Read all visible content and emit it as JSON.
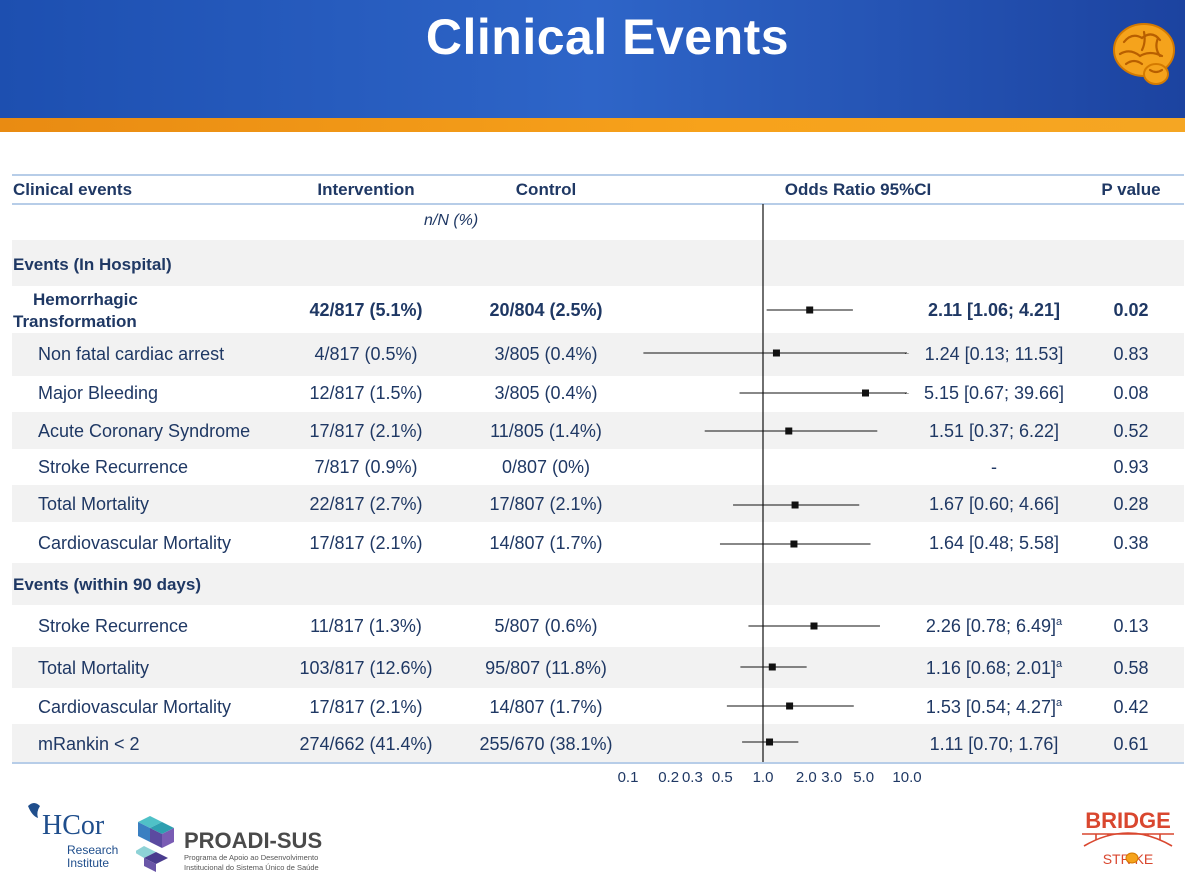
{
  "title": "Clinical Events",
  "columns": {
    "events": "Clinical events",
    "intervention": "Intervention",
    "control": "Control",
    "or": "Odds Ratio 95%CI",
    "p": "P value",
    "unit": "n/N (%)"
  },
  "sections": {
    "hospital": "Events (In Hospital)",
    "ninety": "Events (within 90 days)"
  },
  "rows": [
    {
      "label": "Hemorrhagic Transformation",
      "intervention": "42/817 (5.1%)",
      "control": "20/804 (2.5%)",
      "or_text": "2.11 [1.06; 4.21]",
      "sup": "",
      "p": "0.02",
      "bold": true
    },
    {
      "label": "Non fatal cardiac arrest",
      "intervention": "4/817 (0.5%)",
      "control": "3/805 (0.4%)",
      "or_text": "1.24 [0.13; 11.53]",
      "sup": "",
      "p": "0.83",
      "bold": false
    },
    {
      "label": "Major Bleeding",
      "intervention": "12/817 (1.5%)",
      "control": "3/805 (0.4%)",
      "or_text": "5.15 [0.67; 39.66]",
      "sup": "",
      "p": "0.08",
      "bold": false
    },
    {
      "label": "Acute Coronary Syndrome",
      "intervention": "17/817 (2.1%)",
      "control": "11/805 (1.4%)",
      "or_text": "1.51 [0.37; 6.22]",
      "sup": "",
      "p": "0.52",
      "bold": false
    },
    {
      "label": "Stroke Recurrence",
      "intervention": "7/817 (0.9%)",
      "control": "0/807 (0%)",
      "or_text": "-",
      "sup": "",
      "p": "0.93",
      "bold": false
    },
    {
      "label": "Total Mortality",
      "intervention": "22/817 (2.7%)",
      "control": "17/807 (2.1%)",
      "or_text": "1.67 [0.60; 4.66]",
      "sup": "",
      "p": "0.28",
      "bold": false
    },
    {
      "label": "Cardiovascular Mortality",
      "intervention": "17/817 (2.1%)",
      "control": "14/807 (1.7%)",
      "or_text": "1.64 [0.48; 5.58]",
      "sup": "",
      "p": "0.38",
      "bold": false
    },
    {
      "label": "Stroke Recurrence",
      "intervention": "11/817 (1.3%)",
      "control": "5/807 (0.6%)",
      "or_text": "2.26 [0.78; 6.49]",
      "sup": "a",
      "p": "0.13",
      "bold": false
    },
    {
      "label": "Total Mortality",
      "intervention": "103/817 (12.6%)",
      "control": "95/807 (11.8%)",
      "or_text": "1.16 [0.68; 2.01]",
      "sup": "a",
      "p": "0.58",
      "bold": false
    },
    {
      "label": "Cardiovascular Mortality",
      "intervention": "17/817 (2.1%)",
      "control": "14/807 (1.7%)",
      "or_text": "1.53 [0.54; 4.27]",
      "sup": "a",
      "p": "0.42",
      "bold": false
    },
    {
      "label": "mRankin < 2",
      "intervention": "274/662 (41.4%)",
      "control": "255/670 (38.1%)",
      "or_text": "1.11 [0.70; 1.76]",
      "sup": "",
      "p": "0.61",
      "bold": false
    }
  ],
  "chart_data": {
    "type": "forest",
    "x_scale": "log",
    "reference_line": 1.0,
    "xticks": [
      0.1,
      0.2,
      0.3,
      0.5,
      1.0,
      2.0,
      3.0,
      5.0,
      10.0
    ],
    "xtick_labels": [
      "0.1",
      "0.2",
      "0.3",
      "0.5",
      "1.0",
      "2.0",
      "3.0",
      "5.0",
      "10.0"
    ],
    "estimates": [
      {
        "or": 2.11,
        "lo": 1.06,
        "hi": 4.21
      },
      {
        "or": 1.24,
        "lo": 0.13,
        "hi": 11.53
      },
      {
        "or": 5.15,
        "lo": 0.67,
        "hi": 39.66
      },
      {
        "or": 1.51,
        "lo": 0.37,
        "hi": 6.22
      },
      null,
      {
        "or": 1.67,
        "lo": 0.6,
        "hi": 4.66
      },
      {
        "or": 1.64,
        "lo": 0.48,
        "hi": 5.58
      },
      {
        "or": 2.26,
        "lo": 0.78,
        "hi": 6.49
      },
      {
        "or": 1.16,
        "lo": 0.68,
        "hi": 2.01
      },
      {
        "or": 1.53,
        "lo": 0.54,
        "hi": 4.27
      },
      {
        "or": 1.11,
        "lo": 0.7,
        "hi": 1.76
      }
    ]
  },
  "logos": {
    "hcor": "HCor",
    "hcor_sub1": "Research",
    "hcor_sub2": "Institute",
    "proadi": "PROADI-SUS",
    "proadi_sub1": "Programa de Apoio ao Desenvolvimento",
    "proadi_sub2": "Institucional do Sistema Único de Saúde",
    "bridge": "BRIDGE",
    "stroke": "STR  KE"
  },
  "colors": {
    "header_blue": "#2e65c8",
    "accent_orange": "#f7a21b",
    "text_navy": "#1f3864",
    "bridge_red": "#d9472f"
  }
}
